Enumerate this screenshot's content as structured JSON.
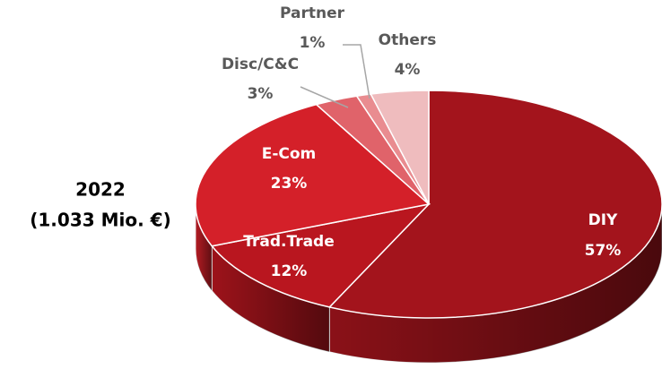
{
  "chart_data": {
    "type": "pie",
    "title": "2022",
    "subtitle": "(1.033 Mio. €)",
    "categories": [
      "DIY",
      "Trad.Trade",
      "E-Com",
      "Disc/C&C",
      "Partner",
      "Others"
    ],
    "values": [
      57,
      12,
      23,
      3,
      1,
      4
    ],
    "value_labels": [
      "57%",
      "12%",
      "23%",
      "3%",
      "1%",
      "4%"
    ],
    "colors": [
      "#a3141c",
      "#b9161f",
      "#d42029",
      "#e0636a",
      "#e98c90",
      "#efbcbe"
    ]
  }
}
